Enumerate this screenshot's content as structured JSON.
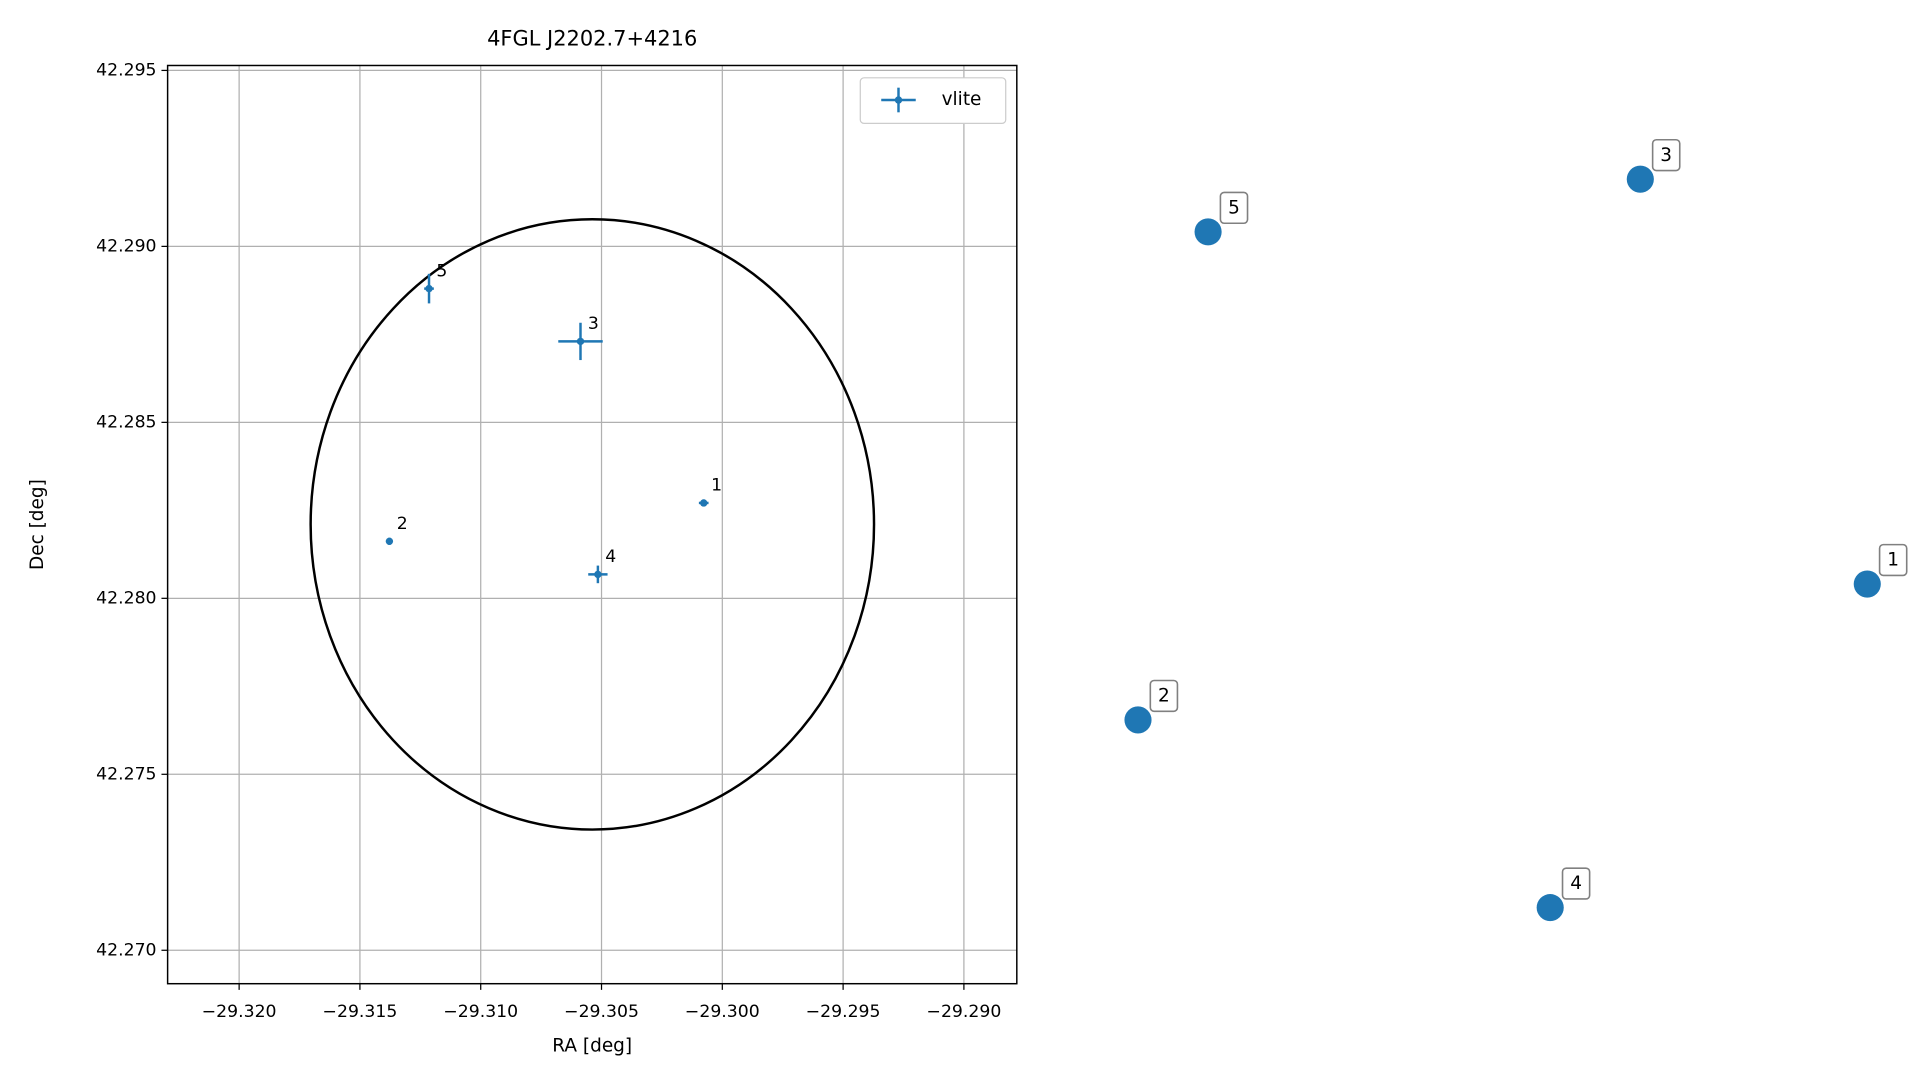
{
  "chart_data": [
    {
      "type": "scatter",
      "title": "4FGL J2202.7+4216",
      "xlabel": "RA [deg]",
      "ylabel": "Dec [deg]",
      "xlim": [
        -29.32296,
        -29.28781
      ],
      "ylim": [
        42.26905,
        42.29514
      ],
      "xticks": [
        {
          "value": -29.32,
          "label": "−29.320"
        },
        {
          "value": -29.315,
          "label": "−29.315"
        },
        {
          "value": -29.31,
          "label": "−29.310"
        },
        {
          "value": -29.305,
          "label": "−29.305"
        },
        {
          "value": -29.3,
          "label": "−29.300"
        },
        {
          "value": -29.295,
          "label": "−29.295"
        },
        {
          "value": -29.29,
          "label": "−29.290"
        }
      ],
      "yticks": [
        {
          "value": 42.27,
          "label": "42.270"
        },
        42.275,
        {
          "value": 42.28,
          "label": "42.280"
        },
        42.285,
        {
          "value": 42.29,
          "label": "42.290"
        },
        42.295
      ],
      "grid": true,
      "legend": "upper right",
      "series": [
        {
          "name": "vlite",
          "color": "#1f77b4",
          "x": [
            -29.30077,
            -29.31378,
            -29.30587,
            -29.30515,
            -29.31214
          ],
          "values": [
            42.28271,
            42.28162,
            42.2873,
            42.28068,
            42.2888
          ],
          "xerr": [
            0.0002,
            0.0001,
            0.00092,
            0.0004,
            0.0002
          ],
          "yerr": [
            0.0001,
            0.0001,
            0.00053,
            0.00025,
            0.00042
          ],
          "labels": [
            "1",
            "2",
            "3",
            "4",
            "5"
          ]
        }
      ],
      "ellipse": {
        "center_x": -29.30538,
        "center_y": 42.2821,
        "rx": 0.01166,
        "ry": 0.00867,
        "color": "#000000"
      }
    },
    {
      "type": "scatter",
      "xlim": [
        0,
        1
      ],
      "ylim": [
        0,
        1
      ],
      "series": [
        {
          "color": "#1f77b4",
          "x": [
            0.938,
            0.064,
            0.666,
            0.558,
            0.148
          ],
          "values": [
            0.435,
            0.288,
            0.873,
            0.085,
            0.816
          ],
          "labels": [
            "1",
            "2",
            "3",
            "4",
            "5"
          ]
        }
      ]
    }
  ]
}
